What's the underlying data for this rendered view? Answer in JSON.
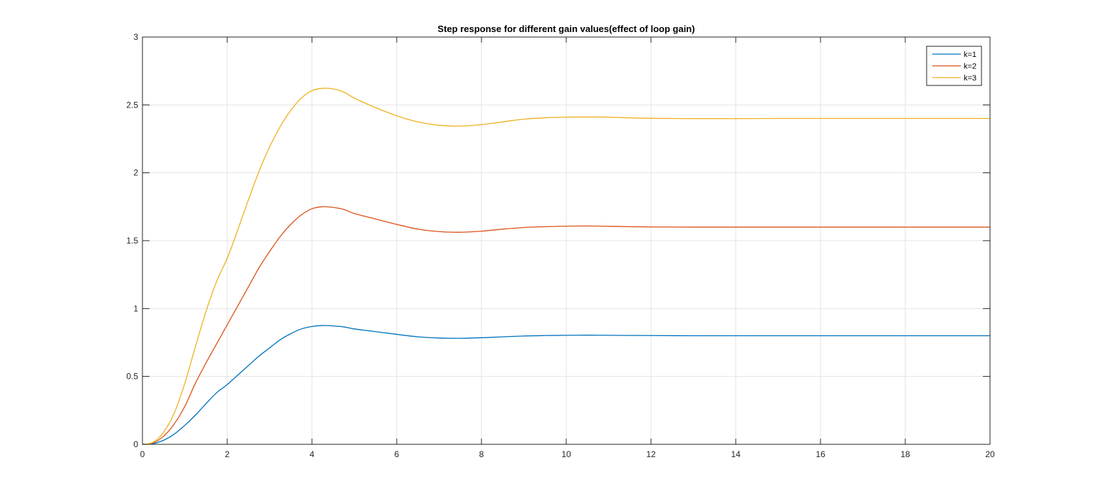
{
  "chart_data": {
    "type": "line",
    "title": "Step response for different gain values(effect of loop gain)",
    "xlabel": "",
    "ylabel": "",
    "xlim": [
      0,
      20
    ],
    "ylim": [
      0,
      3
    ],
    "xticks": [
      "0",
      "2",
      "4",
      "6",
      "8",
      "10",
      "12",
      "14",
      "16",
      "18",
      "20"
    ],
    "yticks": [
      "0",
      "0.5",
      "1",
      "1.5",
      "2",
      "2.5",
      "3"
    ],
    "grid": true,
    "legend_position": "top-right",
    "x": [
      0,
      0.25,
      0.5,
      0.75,
      1,
      1.25,
      1.5,
      1.75,
      2,
      2.25,
      2.5,
      2.75,
      3,
      3.25,
      3.5,
      3.75,
      4,
      4.25,
      4.5,
      4.75,
      5,
      5.5,
      6,
      6.5,
      7,
      7.5,
      8,
      8.5,
      9,
      9.5,
      10,
      10.5,
      11,
      11.5,
      12,
      13,
      14,
      15,
      16,
      17,
      18,
      19,
      20
    ],
    "series": [
      {
        "name": "k=1",
        "color": "#0072BD",
        "values": [
          0,
          0.005,
          0.03,
          0.075,
          0.14,
          0.215,
          0.3,
          0.38,
          0.44,
          0.51,
          0.58,
          0.65,
          0.71,
          0.77,
          0.815,
          0.85,
          0.868,
          0.875,
          0.872,
          0.865,
          0.85,
          0.83,
          0.81,
          0.792,
          0.783,
          0.781,
          0.785,
          0.792,
          0.798,
          0.801,
          0.803,
          0.804,
          0.803,
          0.802,
          0.801,
          0.8,
          0.8,
          0.8,
          0.8,
          0.8,
          0.8,
          0.8,
          0.8
        ]
      },
      {
        "name": "k=2",
        "color": "#D95319",
        "values": [
          0,
          0.01,
          0.06,
          0.15,
          0.28,
          0.45,
          0.6,
          0.74,
          0.88,
          1.02,
          1.16,
          1.3,
          1.42,
          1.53,
          1.62,
          1.69,
          1.735,
          1.75,
          1.745,
          1.73,
          1.7,
          1.66,
          1.62,
          1.585,
          1.567,
          1.562,
          1.57,
          1.585,
          1.597,
          1.603,
          1.607,
          1.608,
          1.606,
          1.603,
          1.601,
          1.6,
          1.6,
          1.6,
          1.6,
          1.6,
          1.6,
          1.6,
          1.6
        ]
      },
      {
        "name": "k=3",
        "color": "#EDB120",
        "values": [
          0,
          0.015,
          0.09,
          0.23,
          0.45,
          0.72,
          0.98,
          1.2,
          1.37,
          1.58,
          1.8,
          2.01,
          2.19,
          2.34,
          2.46,
          2.55,
          2.605,
          2.622,
          2.618,
          2.595,
          2.55,
          2.48,
          2.42,
          2.375,
          2.35,
          2.344,
          2.355,
          2.375,
          2.395,
          2.405,
          2.41,
          2.411,
          2.41,
          2.405,
          2.401,
          2.399,
          2.399,
          2.4,
          2.4,
          2.4,
          2.4,
          2.4,
          2.4
        ]
      }
    ]
  }
}
